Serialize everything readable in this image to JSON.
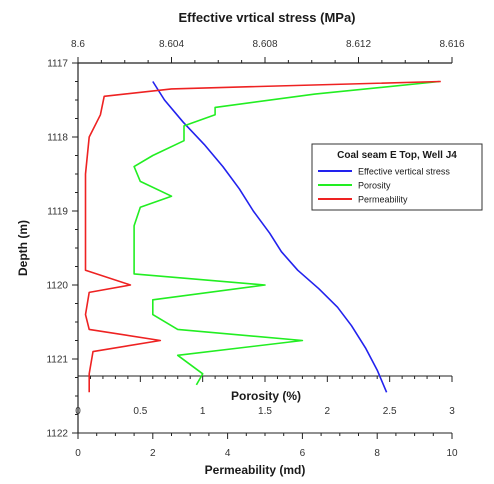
{
  "chart_data": {
    "type": "line",
    "title": "Effective vrtical stress (MPa)",
    "ylabel": "Depth (m)",
    "porosity_axis_label": "Porosity (%)",
    "permeability_axis_label": "Permeability (md)",
    "y_axis": {
      "ylim": [
        1117,
        1122
      ],
      "reversed": true,
      "ticks": [
        1117,
        1118,
        1119,
        1120,
        1121,
        1122
      ],
      "tick_labels": [
        "1117",
        "1118",
        "1119",
        "1120",
        "1121",
        "1122"
      ]
    },
    "stress_axis": {
      "xlim": [
        8.6,
        8.616
      ],
      "ticks": [
        8.6,
        8.604,
        8.608,
        8.612,
        8.616
      ],
      "tick_labels": [
        "8.6",
        "8.604",
        "8.608",
        "8.612",
        "8.616"
      ]
    },
    "porosity_axis": {
      "xlim": [
        0,
        3
      ],
      "ticks": [
        0,
        0.5,
        1,
        1.5,
        2,
        2.5,
        3
      ],
      "tick_labels": [
        "0",
        "0.5",
        "1",
        "1.5",
        "2",
        "2.5",
        "3"
      ]
    },
    "permeability_axis": {
      "xlim": [
        0,
        10
      ],
      "ticks": [
        0,
        2,
        4,
        6,
        8,
        10
      ],
      "tick_labels": [
        "0",
        "2",
        "4",
        "6",
        "8",
        "10"
      ]
    },
    "legend": {
      "title": "Coal seam E Top, Well J4",
      "placement": "right",
      "entries": [
        {
          "name": "Effective vertical stress",
          "color": "#2222ee"
        },
        {
          "name": "Porosity",
          "color": "#22ee22"
        },
        {
          "name": "Permeability",
          "color": "#ee2222"
        }
      ]
    },
    "series": [
      {
        "name": "Effective vertical stress",
        "axis": "stress",
        "color": "#2222ee",
        "points": [
          [
            8.6032,
            1117.25
          ],
          [
            8.6037,
            1117.5
          ],
          [
            8.6045,
            1117.8
          ],
          [
            8.6054,
            1118.1
          ],
          [
            8.6062,
            1118.4
          ],
          [
            8.6069,
            1118.7
          ],
          [
            8.6075,
            1119.0
          ],
          [
            8.6082,
            1119.3
          ],
          [
            8.6087,
            1119.55
          ],
          [
            8.6094,
            1119.8
          ],
          [
            8.6103,
            1120.05
          ],
          [
            8.6111,
            1120.3
          ],
          [
            8.6117,
            1120.55
          ],
          [
            8.6123,
            1120.85
          ],
          [
            8.6128,
            1121.15
          ],
          [
            8.6132,
            1121.45
          ]
        ]
      },
      {
        "name": "Porosity",
        "axis": "porosity",
        "color": "#22ee22",
        "points": [
          [
            2.9,
            1117.25
          ],
          [
            1.9,
            1117.42
          ],
          [
            1.1,
            1117.6
          ],
          [
            1.1,
            1117.7
          ],
          [
            0.85,
            1117.85
          ],
          [
            0.85,
            1118.05
          ],
          [
            0.6,
            1118.25
          ],
          [
            0.45,
            1118.4
          ],
          [
            0.5,
            1118.6
          ],
          [
            0.75,
            1118.8
          ],
          [
            0.5,
            1118.95
          ],
          [
            0.45,
            1119.2
          ],
          [
            0.45,
            1119.4
          ],
          [
            0.45,
            1119.6
          ],
          [
            0.45,
            1119.85
          ],
          [
            1.5,
            1120.0
          ],
          [
            0.6,
            1120.2
          ],
          [
            0.6,
            1120.4
          ],
          [
            0.8,
            1120.6
          ],
          [
            1.8,
            1120.75
          ],
          [
            0.8,
            1120.95
          ],
          [
            1.0,
            1121.2
          ],
          [
            0.95,
            1121.35
          ]
        ]
      },
      {
        "name": "Permeability",
        "axis": "permeability",
        "color": "#ee2222",
        "points": [
          [
            9.7,
            1117.25
          ],
          [
            2.5,
            1117.35
          ],
          [
            0.7,
            1117.45
          ],
          [
            0.6,
            1117.7
          ],
          [
            0.5,
            1117.8
          ],
          [
            0.3,
            1118.0
          ],
          [
            0.2,
            1118.5
          ],
          [
            0.2,
            1119.0
          ],
          [
            0.2,
            1119.5
          ],
          [
            0.2,
            1119.8
          ],
          [
            1.4,
            1120.0
          ],
          [
            0.3,
            1120.1
          ],
          [
            0.2,
            1120.4
          ],
          [
            0.3,
            1120.6
          ],
          [
            2.2,
            1120.75
          ],
          [
            0.4,
            1120.9
          ],
          [
            0.3,
            1121.2
          ],
          [
            0.3,
            1121.45
          ]
        ]
      }
    ]
  }
}
